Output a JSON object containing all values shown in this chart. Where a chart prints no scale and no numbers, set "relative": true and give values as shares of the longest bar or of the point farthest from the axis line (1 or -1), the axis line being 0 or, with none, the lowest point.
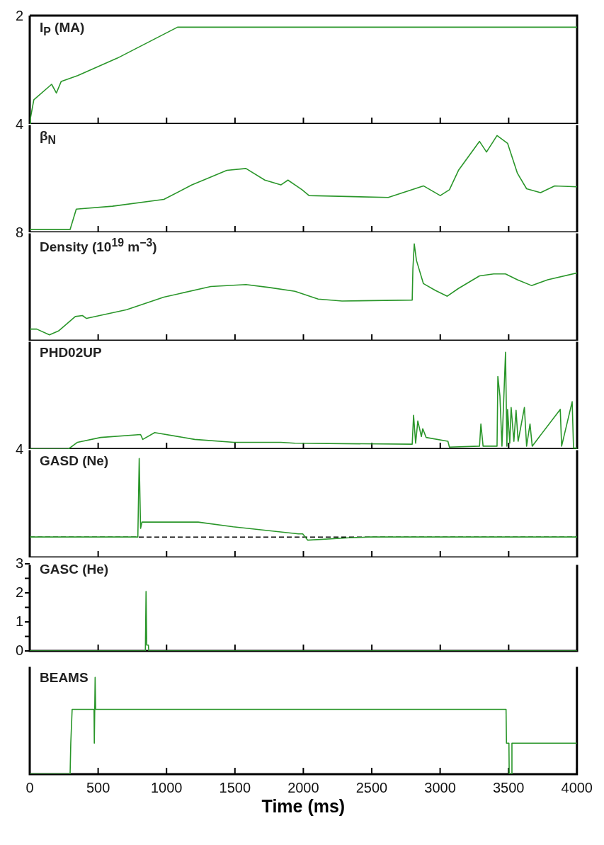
{
  "chart_data": [
    {
      "type": "line",
      "title": "I$_{P}$ (MA)",
      "annotations": [
        "2"
      ],
      "color": "#2a962a",
      "xlim": [
        0,
        4000
      ],
      "xticks": [
        0,
        500,
        1000,
        1500,
        2000,
        2500,
        3000,
        3500,
        4000
      ],
      "relative": true,
      "tick_labels": false,
      "x": [
        0,
        5,
        30,
        160,
        195,
        230,
        350,
        640,
        1080,
        4000
      ],
      "values": [
        0,
        0.06,
        0.25,
        0.41,
        0.32,
        0.44,
        0.5,
        0.68,
        1,
        1
      ]
    },
    {
      "type": "line",
      "title": "β$_{N}$",
      "annotations": [
        "4"
      ],
      "color": "#2a962a",
      "xlim": [
        0,
        4000
      ],
      "xticks": [
        0,
        500,
        1000,
        1500,
        2000,
        2500,
        3000,
        3500,
        4000
      ],
      "relative": true,
      "tick_labels": false,
      "x": [
        0,
        295,
        340,
        605,
        980,
        1185,
        1440,
        1580,
        1718,
        1835,
        1887,
        1990,
        2041,
        2620,
        2877,
        3000,
        3067,
        3133,
        3287,
        3338,
        3415,
        3492,
        3564,
        3631,
        3733,
        3836,
        4000
      ],
      "values": [
        0.03,
        0.03,
        0.24,
        0.27,
        0.34,
        0.49,
        0.64,
        0.66,
        0.54,
        0.49,
        0.54,
        0.44,
        0.38,
        0.36,
        0.48,
        0.38,
        0.44,
        0.64,
        0.94,
        0.83,
        1,
        0.92,
        0.61,
        0.45,
        0.41,
        0.48,
        0.47
      ]
    },
    {
      "type": "line",
      "title": "Density (10$^{19}$ m$^{−3}$)",
      "annotations": [
        "8"
      ],
      "color": "#2a962a",
      "xlim": [
        0,
        4000
      ],
      "xticks": [
        0,
        500,
        1000,
        1500,
        2000,
        2500,
        3000,
        3500,
        4000
      ],
      "relative": true,
      "tick_labels": false,
      "x": [
        0,
        51,
        144,
        210,
        333,
        385,
        415,
        708,
        980,
        1323,
        1580,
        1750,
        1938,
        2108,
        2282,
        2795,
        2800,
        2810,
        2826,
        2877,
        2964,
        3051,
        3133,
        3287,
        3390,
        3477,
        3564,
        3667,
        3785,
        4000
      ],
      "values": [
        0.12,
        0.12,
        0.06,
        0.1,
        0.25,
        0.26,
        0.23,
        0.32,
        0.45,
        0.56,
        0.58,
        0.55,
        0.51,
        0.43,
        0.41,
        0.42,
        0.74,
        1,
        0.83,
        0.59,
        0.52,
        0.46,
        0.54,
        0.67,
        0.69,
        0.69,
        0.63,
        0.57,
        0.63,
        0.7
      ]
    },
    {
      "type": "line",
      "title": "PHD02UP",
      "color": "#2a962a",
      "xlim": [
        0,
        4000
      ],
      "xticks": [
        0,
        500,
        1000,
        1500,
        2000,
        2500,
        3000,
        3500,
        4000
      ],
      "relative": true,
      "tick_labels": false,
      "x": [
        0,
        282,
        349,
        518,
        810,
        826,
        913,
        1205,
        1492,
        1836,
        1938,
        2795,
        2805,
        2820,
        2836,
        2862,
        2872,
        2897,
        3056,
        3067,
        3287,
        3297,
        3313,
        3415,
        3421,
        3436,
        3451,
        3477,
        3487,
        3492,
        3508,
        3518,
        3538,
        3554,
        3569,
        3615,
        3631,
        3656,
        3672,
        3877,
        3887,
        3964,
        3974,
        4000
      ],
      "values": [
        0,
        0,
        0.07,
        0.12,
        0.15,
        0.1,
        0.17,
        0.1,
        0.07,
        0.07,
        0.06,
        0.05,
        0.35,
        0.06,
        0.29,
        0.13,
        0.21,
        0.12,
        0.08,
        0.02,
        0.03,
        0.26,
        0.03,
        0.03,
        0.75,
        0.55,
        0.03,
        1,
        0.03,
        0.41,
        0.06,
        0.43,
        0.08,
        0.4,
        0.08,
        0.43,
        0.03,
        0.26,
        0.03,
        0.41,
        0.03,
        0.49,
        0.01,
        0.01
      ]
    },
    {
      "type": "line",
      "title": "GASD (Ne)",
      "annotations": [
        "4"
      ],
      "color": "#2a962a",
      "xlim": [
        0,
        4000
      ],
      "xticks": [
        0,
        500,
        1000,
        1500,
        2000,
        2500,
        3000,
        3500,
        4000
      ],
      "relative": true,
      "tick_labels": false,
      "ref_lines": [
        {
          "axis": "y",
          "value": 0,
          "color": "#000000",
          "line_style": "dashed"
        }
      ],
      "x": [
        0,
        790,
        800,
        810,
        820,
        1231,
        1487,
        1964,
        1995,
        2031,
        2333,
        2487,
        4000
      ],
      "values": [
        0,
        0,
        1,
        0.11,
        0.19,
        0.19,
        0.13,
        0.04,
        0.04,
        -0.04,
        -0.01,
        0,
        0
      ]
    },
    {
      "type": "line",
      "title": "GASC (He)",
      "color": "#2a962a",
      "xlim": [
        0,
        4000
      ],
      "xticks": [
        0,
        500,
        1000,
        1500,
        2000,
        2500,
        3000,
        3500,
        4000
      ],
      "ylim": [
        0,
        3
      ],
      "yticks": [
        0,
        {
          "value": 0.5,
          "label": null
        },
        1,
        {
          "value": 1.5,
          "label": null
        },
        2,
        {
          "value": 2.5,
          "label": null
        },
        3
      ],
      "tick_labels": "y",
      "x": [
        0,
        845,
        850,
        855,
        867,
        870,
        4000
      ],
      "values": [
        0,
        0,
        2.05,
        0.2,
        0.2,
        0,
        0
      ]
    },
    {
      "type": "line",
      "title": "BEAMS",
      "color": "#2a962a",
      "xlim": [
        0,
        4000
      ],
      "xticks": [
        0,
        500,
        1000,
        1500,
        2000,
        2500,
        3000,
        3500,
        4000
      ],
      "relative": true,
      "tick_labels": "x",
      "xlabel": "Time (ms)",
      "x": [
        0,
        295,
        300,
        310,
        470,
        472,
        478,
        482,
        3482,
        3485,
        3503,
        3505,
        3523,
        3525,
        4000
      ],
      "values": [
        0,
        0,
        0.32,
        0.67,
        0.67,
        0.32,
        1,
        0.67,
        0.67,
        0.32,
        0.32,
        0,
        0,
        0.32,
        0.32
      ]
    }
  ]
}
